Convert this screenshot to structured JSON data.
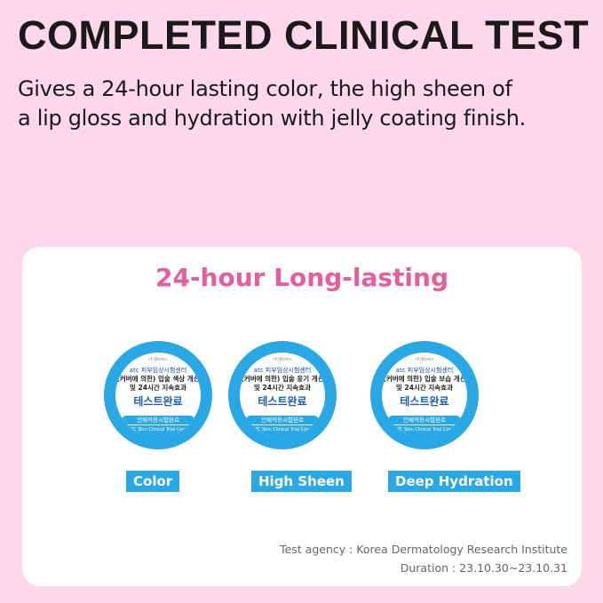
{
  "header": {
    "title": "COMPLETED CLINICAL TEST",
    "subtitle_line1": "Gives a 24-hour lasting color, the high sheen of",
    "subtitle_line2": "a lip gloss and hydration with jelly coating finish."
  },
  "card": {
    "title": "24-hour Long-lasting",
    "badges": [
      {
        "small": "(주)엘티에스",
        "org": "atc 피부임상시험센터",
        "line1": "(커버에 의한) 입술 색상 개선",
        "line2": "및 24시간 지속효과",
        "big": "테스트완료",
        "pill": "인체적용시험완료",
        "bottom": "OATC Skin Clinical Trial Center",
        "label": "Color"
      },
      {
        "small": "(주)엘티에스",
        "org": "atc 피부임상시험센터",
        "line1": "(커버에 의한) 입술 윤기 개선",
        "line2": "및 24시간 지속효과",
        "big": "테스트완료",
        "pill": "인체적용시험완료",
        "bottom": "OATC Skin Clinical Trial Center",
        "label": "High Sheen"
      },
      {
        "small": "(주)엘티에스",
        "org": "atc 피부임상시험센터",
        "line1": "(커버에 의한) 입술 보습 개선",
        "line2": "및 24시간 지속효과",
        "big": "테스트완료",
        "pill": "인체적용시험완료",
        "bottom": "OATC Skin Clinical Trial Center",
        "label": "Deep Hydration"
      }
    ],
    "agency": "Test agency : Korea Dermatology Research Institute",
    "duration": "Duration : 23.10.30~23.10.31"
  },
  "colors": {
    "background": "#fcd8ea",
    "accent_pink": "#e85c9f",
    "badge_blue": "#29a8e6"
  }
}
